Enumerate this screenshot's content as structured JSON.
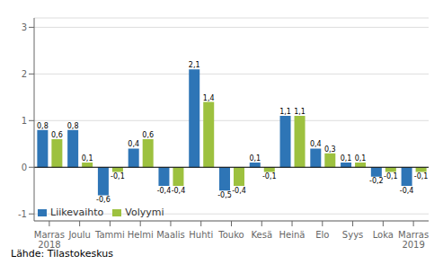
{
  "chart_data": {
    "type": "bar",
    "categories": [
      "Marras\n2018",
      "Joulu",
      "Tammi",
      "Helmi",
      "Maalis",
      "Huhti",
      "Touko",
      "Kesä",
      "Heinä",
      "Elo",
      "Syys",
      "Loka",
      "Marras\n2019"
    ],
    "series": [
      {
        "name": "Liikevaihto",
        "color": "#2e75b6",
        "values": [
          0.8,
          0.8,
          -0.6,
          0.4,
          -0.4,
          2.1,
          -0.5,
          0.1,
          1.1,
          0.4,
          0.1,
          -0.2,
          -0.4
        ],
        "value_labels": [
          "0,8",
          "0,8",
          "-0,6",
          "0,4",
          "-0,4",
          "2,1",
          "-0,5",
          "0,1",
          "1,1",
          "0,4",
          "0,1",
          "-0,2",
          "-0,4"
        ]
      },
      {
        "name": "Volyymi",
        "color": "#9dc13f",
        "values": [
          0.6,
          0.1,
          -0.1,
          0.6,
          -0.4,
          1.4,
          -0.4,
          -0.1,
          1.1,
          0.3,
          0.1,
          -0.1,
          -0.1
        ],
        "value_labels": [
          "0,6",
          "0,1",
          "-0,1",
          "0,6",
          "-0,4",
          "1,4",
          "-0,4",
          "-0,1",
          "1,1",
          "0,3",
          "0,1",
          "-0,1",
          "-0,1"
        ]
      }
    ],
    "ylim": [
      -1.15,
      3.2
    ],
    "yticks": [
      -1,
      0,
      1,
      2,
      3
    ],
    "grid": true,
    "legend": "lower left",
    "data_labels": true,
    "annotations": [
      "Lähde: Tilastokeskus"
    ]
  }
}
